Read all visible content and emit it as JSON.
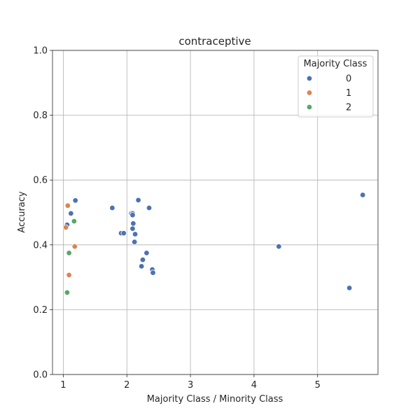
{
  "chart_data": {
    "type": "scatter",
    "title": "contraceptive",
    "xlabel": "Majority Class / Minority Class",
    "ylabel": "Accuracy",
    "xlim": [
      0.83,
      5.95
    ],
    "ylim": [
      0.0,
      1.0
    ],
    "xticks": [
      1,
      2,
      3,
      4,
      5
    ],
    "yticks": [
      0.0,
      0.2,
      0.4,
      0.6,
      0.8,
      1.0
    ],
    "xtick_labels": [
      "1",
      "2",
      "3",
      "4",
      "5"
    ],
    "ytick_labels": [
      "0.0",
      "0.2",
      "0.4",
      "0.6",
      "0.8",
      "1.0"
    ],
    "grid": true,
    "legend": {
      "title": "Majority Class",
      "placement": "top-right"
    },
    "series": [
      {
        "name": "0",
        "color": "#4c72b0",
        "points": [
          [
            1.06,
            0.462
          ],
          [
            1.12,
            0.497
          ],
          [
            1.19,
            0.537
          ],
          [
            1.77,
            0.514
          ],
          [
            1.91,
            0.436
          ],
          [
            1.95,
            0.436
          ],
          [
            2.07,
            0.497
          ],
          [
            2.09,
            0.497
          ],
          [
            2.09,
            0.492
          ],
          [
            2.1,
            0.466
          ],
          [
            2.09,
            0.45
          ],
          [
            2.13,
            0.433
          ],
          [
            2.12,
            0.409
          ],
          [
            2.18,
            0.538
          ],
          [
            2.35,
            0.514
          ],
          [
            2.31,
            0.375
          ],
          [
            2.25,
            0.354
          ],
          [
            2.23,
            0.334
          ],
          [
            2.4,
            0.324
          ],
          [
            2.41,
            0.314
          ],
          [
            4.39,
            0.395
          ],
          [
            5.5,
            0.267
          ],
          [
            5.71,
            0.554
          ]
        ]
      },
      {
        "name": "1",
        "color": "#dd8452",
        "points": [
          [
            1.07,
            0.521
          ],
          [
            1.04,
            0.454
          ],
          [
            1.18,
            0.395
          ],
          [
            1.09,
            0.307
          ]
        ]
      },
      {
        "name": "2",
        "color": "#55a868",
        "points": [
          [
            1.17,
            0.473
          ],
          [
            1.09,
            0.375
          ],
          [
            1.06,
            0.253
          ]
        ]
      }
    ]
  }
}
